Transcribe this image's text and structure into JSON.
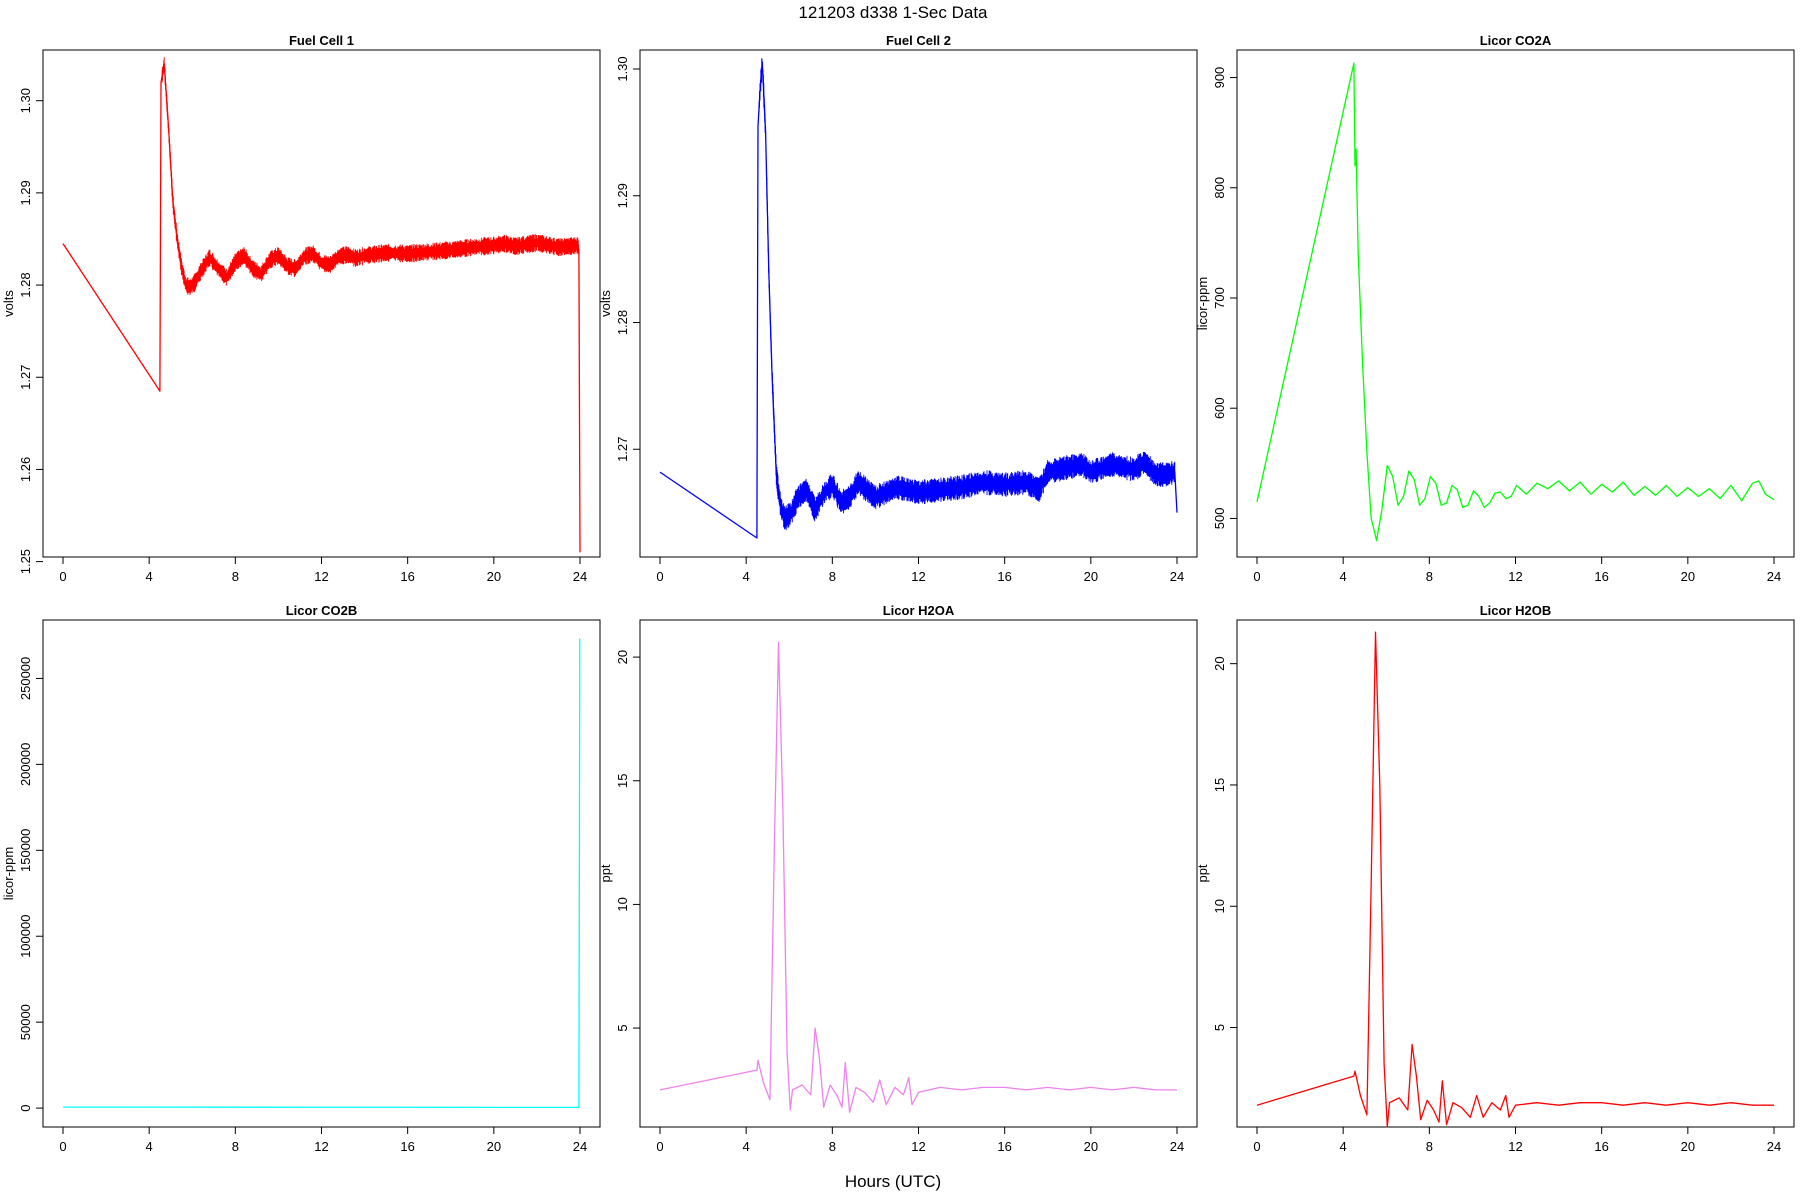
{
  "figure": {
    "title": "121203   d338   1-Sec Data",
    "xlabel": "Hours (UTC)"
  },
  "chart_data": [
    {
      "type": "line",
      "title": "Fuel Cell 1",
      "ylabel": "volts",
      "color": "#ff0000",
      "xlim": [
        0,
        24
      ],
      "ylim": [
        1.2505,
        1.3055
      ],
      "xticks": [
        0,
        4,
        8,
        12,
        16,
        20,
        24
      ],
      "yticks": [
        1.25,
        1.26,
        1.27,
        1.28,
        1.29,
        1.3
      ],
      "ytick_labels": [
        "1.25",
        "1.26",
        "1.27",
        "1.28",
        "1.29",
        "1.30"
      ],
      "noise": 0.0007,
      "x": [
        0,
        4.5,
        4.55,
        4.7,
        4.9,
        5.1,
        5.3,
        5.5,
        5.7,
        5.9,
        6.1,
        6.4,
        6.8,
        7.2,
        7.6,
        8.0,
        8.4,
        8.8,
        9.2,
        9.6,
        10.0,
        10.4,
        10.8,
        11.2,
        11.6,
        12.0,
        12.4,
        12.8,
        13.2,
        13.6,
        14.0,
        15.0,
        16.0,
        17.0,
        18.0,
        19.0,
        20.0,
        20.5,
        21.0,
        22.0,
        23.0,
        23.9,
        23.95,
        24.0
      ],
      "y": [
        1.2845,
        1.2685,
        1.302,
        1.304,
        1.297,
        1.289,
        1.285,
        1.282,
        1.28,
        1.2798,
        1.2802,
        1.2815,
        1.283,
        1.2818,
        1.2808,
        1.2825,
        1.2832,
        1.2818,
        1.2812,
        1.2827,
        1.2832,
        1.2821,
        1.2818,
        1.2831,
        1.2834,
        1.2824,
        1.2822,
        1.2831,
        1.2833,
        1.2829,
        1.2832,
        1.2835,
        1.2834,
        1.2836,
        1.2838,
        1.2841,
        1.2843,
        1.2845,
        1.2842,
        1.2846,
        1.2841,
        1.2843,
        1.2838,
        1.251
      ]
    },
    {
      "type": "line",
      "title": "Fuel Cell 2",
      "ylabel": "volts",
      "color": "#0000ff",
      "xlim": [
        0,
        24
      ],
      "ylim": [
        1.2615,
        1.3015
      ],
      "xticks": [
        0,
        4,
        8,
        12,
        16,
        20,
        24
      ],
      "yticks": [
        1.27,
        1.28,
        1.29,
        1.3
      ],
      "ytick_labels": [
        "1.27",
        "1.28",
        "1.29",
        "1.30"
      ],
      "noise": 0.0007,
      "x": [
        0,
        4.5,
        4.55,
        4.65,
        4.75,
        4.9,
        5.05,
        5.2,
        5.4,
        5.6,
        5.8,
        6.1,
        6.4,
        6.8,
        7.2,
        7.6,
        8.0,
        8.4,
        8.8,
        9.2,
        9.6,
        10.0,
        11.0,
        12.0,
        13.0,
        14.0,
        15.0,
        16.0,
        17.0,
        17.6,
        18.0,
        19.0,
        19.6,
        20.0,
        21.0,
        22.0,
        22.5,
        23.0,
        23.5,
        23.9,
        24.0
      ],
      "y": [
        1.2682,
        1.263,
        1.2955,
        1.2985,
        1.3005,
        1.295,
        1.284,
        1.276,
        1.268,
        1.2655,
        1.2645,
        1.265,
        1.2662,
        1.2668,
        1.2652,
        1.2665,
        1.2672,
        1.2658,
        1.2662,
        1.2674,
        1.2668,
        1.2662,
        1.267,
        1.2666,
        1.2668,
        1.267,
        1.2674,
        1.2672,
        1.2674,
        1.2668,
        1.2682,
        1.2686,
        1.2688,
        1.2682,
        1.2688,
        1.2684,
        1.269,
        1.268,
        1.268,
        1.2682,
        1.265
      ]
    },
    {
      "type": "line",
      "title": "Licor CO2A",
      "ylabel": "licor-ppm",
      "color": "#00ff00",
      "xlim": [
        0,
        24
      ],
      "ylim": [
        465,
        925
      ],
      "xticks": [
        0,
        4,
        8,
        12,
        16,
        20,
        24
      ],
      "yticks": [
        500,
        600,
        700,
        800,
        900
      ],
      "ytick_labels": [
        "500",
        "600",
        "700",
        "800",
        "900"
      ],
      "noise": 0,
      "x": [
        0,
        4.5,
        4.55,
        4.6,
        4.7,
        4.9,
        5.1,
        5.3,
        5.55,
        5.8,
        6.05,
        6.3,
        6.55,
        6.8,
        7.05,
        7.3,
        7.55,
        7.8,
        8.05,
        8.3,
        8.55,
        8.8,
        9.05,
        9.3,
        9.55,
        9.8,
        10.05,
        10.3,
        10.55,
        10.8,
        11.05,
        11.3,
        11.55,
        11.8,
        12.05,
        12.5,
        13.0,
        13.5,
        14.0,
        14.5,
        15.0,
        15.5,
        16.0,
        16.5,
        17.0,
        17.5,
        18.0,
        18.5,
        19.0,
        19.5,
        20.0,
        20.5,
        21.0,
        21.5,
        22.0,
        22.5,
        23.0,
        23.3,
        23.6,
        24.0
      ],
      "y": [
        515,
        913,
        820,
        835,
        740,
        640,
        560,
        500,
        480,
        508,
        548,
        538,
        512,
        520,
        543,
        535,
        512,
        518,
        538,
        532,
        512,
        514,
        530,
        526,
        510,
        512,
        525,
        520,
        510,
        514,
        523,
        524,
        518,
        520,
        530,
        522,
        532,
        527,
        534,
        525,
        533,
        522,
        531,
        524,
        533,
        521,
        529,
        521,
        530,
        520,
        528,
        520,
        527,
        518,
        530,
        516,
        532,
        534,
        522,
        517
      ]
    },
    {
      "type": "line",
      "title": "Licor CO2B",
      "ylabel": "licor-ppm",
      "color": "#00ffff",
      "xlim": [
        0,
        24
      ],
      "ylim": [
        -11000,
        284000
      ],
      "xticks": [
        0,
        4,
        8,
        12,
        16,
        20,
        24
      ],
      "yticks": [
        0,
        50000,
        100000,
        150000,
        200000,
        250000
      ],
      "ytick_labels": [
        "0",
        "50000",
        "100000",
        "150000",
        "200000",
        "250000"
      ],
      "noise": 0,
      "x": [
        0,
        23.95,
        23.99,
        24.0
      ],
      "y": [
        600,
        400,
        273000,
        273000
      ]
    },
    {
      "type": "line",
      "title": "Licor H2OA",
      "ylabel": "ppt",
      "color": "#ee82ee",
      "xlim": [
        0,
        24
      ],
      "ylim": [
        1.0,
        21.5
      ],
      "xticks": [
        0,
        4,
        8,
        12,
        16,
        20,
        24
      ],
      "yticks": [
        5,
        10,
        15,
        20
      ],
      "ytick_labels": [
        "5",
        "10",
        "15",
        "20"
      ],
      "noise": 0,
      "x": [
        0,
        4.5,
        4.55,
        4.8,
        5.1,
        5.3,
        5.5,
        5.7,
        5.9,
        6.05,
        6.15,
        6.6,
        7.0,
        7.2,
        7.4,
        7.6,
        7.9,
        8.2,
        8.45,
        8.6,
        8.8,
        9.1,
        9.5,
        9.9,
        10.2,
        10.5,
        10.9,
        11.3,
        11.55,
        11.7,
        12.0,
        13.0,
        14.0,
        15.0,
        16.0,
        17.0,
        18.0,
        19.0,
        20.0,
        21.0,
        22.0,
        23.0,
        24.0
      ],
      "y": [
        2.5,
        3.3,
        3.7,
        2.8,
        2.1,
        12.0,
        20.6,
        14.0,
        4.0,
        1.7,
        2.5,
        2.7,
        2.3,
        5.0,
        3.8,
        1.8,
        2.7,
        2.3,
        1.8,
        3.6,
        1.6,
        2.6,
        2.4,
        2.0,
        2.9,
        1.9,
        2.6,
        2.3,
        3.0,
        1.9,
        2.4,
        2.6,
        2.5,
        2.6,
        2.6,
        2.5,
        2.6,
        2.5,
        2.6,
        2.5,
        2.6,
        2.5,
        2.5
      ]
    },
    {
      "type": "line",
      "title": "Licor H2OB",
      "ylabel": "ppt",
      "color": "#ff0000",
      "xlim": [
        0,
        24
      ],
      "ylim": [
        0.9,
        21.8
      ],
      "xticks": [
        0,
        4,
        8,
        12,
        16,
        20,
        24
      ],
      "yticks": [
        5,
        10,
        15,
        20
      ],
      "ytick_labels": [
        "5",
        "10",
        "15",
        "20"
      ],
      "noise": 0,
      "x": [
        0,
        4.5,
        4.55,
        4.8,
        5.1,
        5.3,
        5.5,
        5.7,
        5.9,
        6.05,
        6.15,
        6.6,
        7.0,
        7.2,
        7.4,
        7.6,
        7.9,
        8.2,
        8.45,
        8.6,
        8.8,
        9.1,
        9.5,
        9.9,
        10.2,
        10.5,
        10.9,
        11.3,
        11.55,
        11.7,
        12.0,
        13.0,
        14.0,
        15.0,
        16.0,
        17.0,
        18.0,
        19.0,
        20.0,
        21.0,
        22.0,
        23.0,
        24.0
      ],
      "y": [
        1.8,
        3.0,
        3.2,
        2.2,
        1.4,
        11.0,
        21.3,
        15.0,
        3.5,
        0.9,
        1.9,
        2.1,
        1.6,
        4.3,
        3.0,
        1.2,
        2.0,
        1.6,
        1.1,
        2.8,
        1.0,
        1.9,
        1.7,
        1.3,
        2.2,
        1.3,
        1.9,
        1.6,
        2.2,
        1.3,
        1.8,
        1.9,
        1.8,
        1.9,
        1.9,
        1.8,
        1.9,
        1.8,
        1.9,
        1.8,
        1.9,
        1.8,
        1.8
      ]
    }
  ]
}
